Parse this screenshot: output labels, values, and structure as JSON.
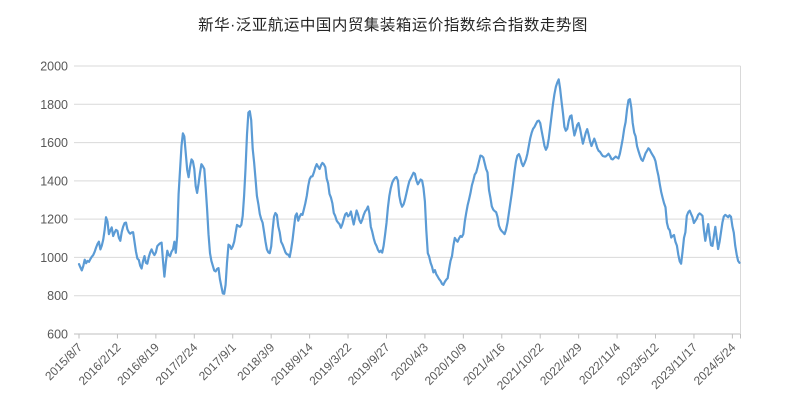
{
  "chart_data": {
    "type": "line",
    "title": "新华·泛亚航运中国内贸集装箱运价指数综合指数走势图",
    "xlabel": "",
    "ylabel": "",
    "ylim": [
      600,
      2000
    ],
    "yticks": [
      600,
      800,
      1000,
      1200,
      1400,
      1600,
      1800,
      2000
    ],
    "grid": "horizontal",
    "legend": "none",
    "frequency": "weekly",
    "tick_every": 27,
    "x_tick_labels": [
      "2015/8/7",
      "2016/2/12",
      "2016/8/19",
      "2017/2/24",
      "2017/9/1",
      "2018/3/9",
      "2018/9/14",
      "2019/3/22",
      "2019/9/27",
      "2020/4/3",
      "2020/10/9",
      "2021/4/16",
      "2021/10/22",
      "2022/4/29",
      "2022/11/4",
      "2023/5/12",
      "2023/11/17",
      "2024/5/24"
    ],
    "values": [
      965,
      948,
      932,
      955,
      988,
      970,
      982,
      977,
      992,
      1004,
      1012,
      1030,
      1052,
      1070,
      1082,
      1042,
      1062,
      1092,
      1142,
      1210,
      1187,
      1122,
      1140,
      1157,
      1112,
      1130,
      1144,
      1139,
      1102,
      1087,
      1132,
      1160,
      1180,
      1182,
      1147,
      1132,
      1124,
      1130,
      1132,
      1082,
      1032,
      994,
      987,
      957,
      942,
      982,
      1007,
      972,
      967,
      1002,
      1027,
      1042,
      1024,
      1012,
      1027,
      1059,
      1067,
      1074,
      1077,
      982,
      900,
      972,
      1035,
      1012,
      1007,
      1030,
      1042,
      1082,
      1024,
      1112,
      1332,
      1462,
      1582,
      1648,
      1632,
      1542,
      1457,
      1419,
      1472,
      1512,
      1502,
      1462,
      1372,
      1337,
      1387,
      1442,
      1487,
      1477,
      1462,
      1362,
      1252,
      1122,
      1022,
      982,
      957,
      932,
      927,
      940,
      944,
      887,
      850,
      812,
      810,
      857,
      972,
      1067,
      1062,
      1044,
      1057,
      1082,
      1127,
      1170,
      1164,
      1160,
      1170,
      1217,
      1322,
      1462,
      1642,
      1757,
      1764,
      1717,
      1567,
      1497,
      1412,
      1322,
      1277,
      1227,
      1200,
      1182,
      1132,
      1082,
      1042,
      1027,
      1022,
      1057,
      1142,
      1212,
      1232,
      1222,
      1162,
      1132,
      1082,
      1067,
      1047,
      1027,
      1017,
      1014,
      1002,
      1042,
      1090,
      1152,
      1217,
      1230,
      1192,
      1212,
      1227,
      1222,
      1252,
      1282,
      1322,
      1372,
      1408,
      1422,
      1424,
      1444,
      1470,
      1487,
      1474,
      1462,
      1482,
      1494,
      1487,
      1472,
      1412,
      1387,
      1332,
      1312,
      1282,
      1232,
      1217,
      1192,
      1182,
      1174,
      1155,
      1172,
      1200,
      1225,
      1232,
      1215,
      1222,
      1240,
      1205,
      1172,
      1210,
      1245,
      1225,
      1195,
      1180,
      1197,
      1222,
      1240,
      1250,
      1266,
      1230,
      1160,
      1135,
      1100,
      1075,
      1060,
      1040,
      1028,
      1035,
      1025,
      1060,
      1120,
      1180,
      1260,
      1320,
      1360,
      1390,
      1405,
      1415,
      1420,
      1402,
      1322,
      1285,
      1265,
      1277,
      1302,
      1334,
      1367,
      1397,
      1412,
      1427,
      1442,
      1437,
      1402,
      1382,
      1394,
      1407,
      1402,
      1362,
      1292,
      1142,
      1022,
      1004,
      972,
      952,
      922,
      934,
      912,
      900,
      887,
      877,
      862,
      857,
      872,
      884,
      892,
      940,
      982,
      1007,
      1062,
      1102,
      1090,
      1082,
      1100,
      1112,
      1107,
      1122,
      1187,
      1232,
      1272,
      1302,
      1337,
      1377,
      1402,
      1432,
      1444,
      1472,
      1502,
      1532,
      1530,
      1522,
      1492,
      1462,
      1444,
      1352,
      1312,
      1267,
      1250,
      1242,
      1237,
      1212,
      1167,
      1147,
      1137,
      1130,
      1122,
      1144,
      1182,
      1232,
      1282,
      1332,
      1392,
      1452,
      1502,
      1532,
      1540,
      1522,
      1492,
      1477,
      1494,
      1512,
      1542,
      1582,
      1622,
      1652,
      1672,
      1682,
      1697,
      1712,
      1715,
      1702,
      1662,
      1622,
      1582,
      1562,
      1577,
      1622,
      1682,
      1742,
      1802,
      1852,
      1892,
      1914,
      1930,
      1882,
      1812,
      1752,
      1682,
      1662,
      1672,
      1712,
      1737,
      1742,
      1682,
      1637,
      1662,
      1692,
      1702,
      1672,
      1632,
      1594,
      1622,
      1652,
      1670,
      1642,
      1607,
      1582,
      1602,
      1620,
      1600,
      1572,
      1557,
      1552,
      1540,
      1530,
      1527,
      1527,
      1534,
      1542,
      1530,
      1514,
      1512,
      1520,
      1527,
      1522,
      1517,
      1542,
      1582,
      1622,
      1672,
      1707,
      1772,
      1822,
      1827,
      1782,
      1702,
      1652,
      1632,
      1582,
      1557,
      1532,
      1512,
      1504,
      1522,
      1544,
      1557,
      1570,
      1562,
      1547,
      1534,
      1522,
      1502,
      1462,
      1427,
      1382,
      1342,
      1312,
      1282,
      1262,
      1182,
      1152,
      1142,
      1104,
      1112,
      1117,
      1082,
      1062,
      1014,
      980,
      967,
      1032,
      1102,
      1132,
      1217,
      1237,
      1244,
      1227,
      1210,
      1180,
      1192,
      1204,
      1222,
      1230,
      1224,
      1217,
      1142,
      1087,
      1132,
      1174,
      1112,
      1064,
      1060,
      1112,
      1160,
      1102,
      1044,
      1082,
      1132,
      1182,
      1214,
      1222,
      1217,
      1210,
      1220,
      1212,
      1162,
      1129,
      1062,
      1014,
      982,
      972
    ],
    "colors": {
      "line_color": "#5B9BD5",
      "gridline_color": "#D9D9D9",
      "axis_color": "#BFBFBF",
      "label_color": "#595959",
      "title_color": "#262626",
      "background": "#FFFFFF"
    }
  }
}
